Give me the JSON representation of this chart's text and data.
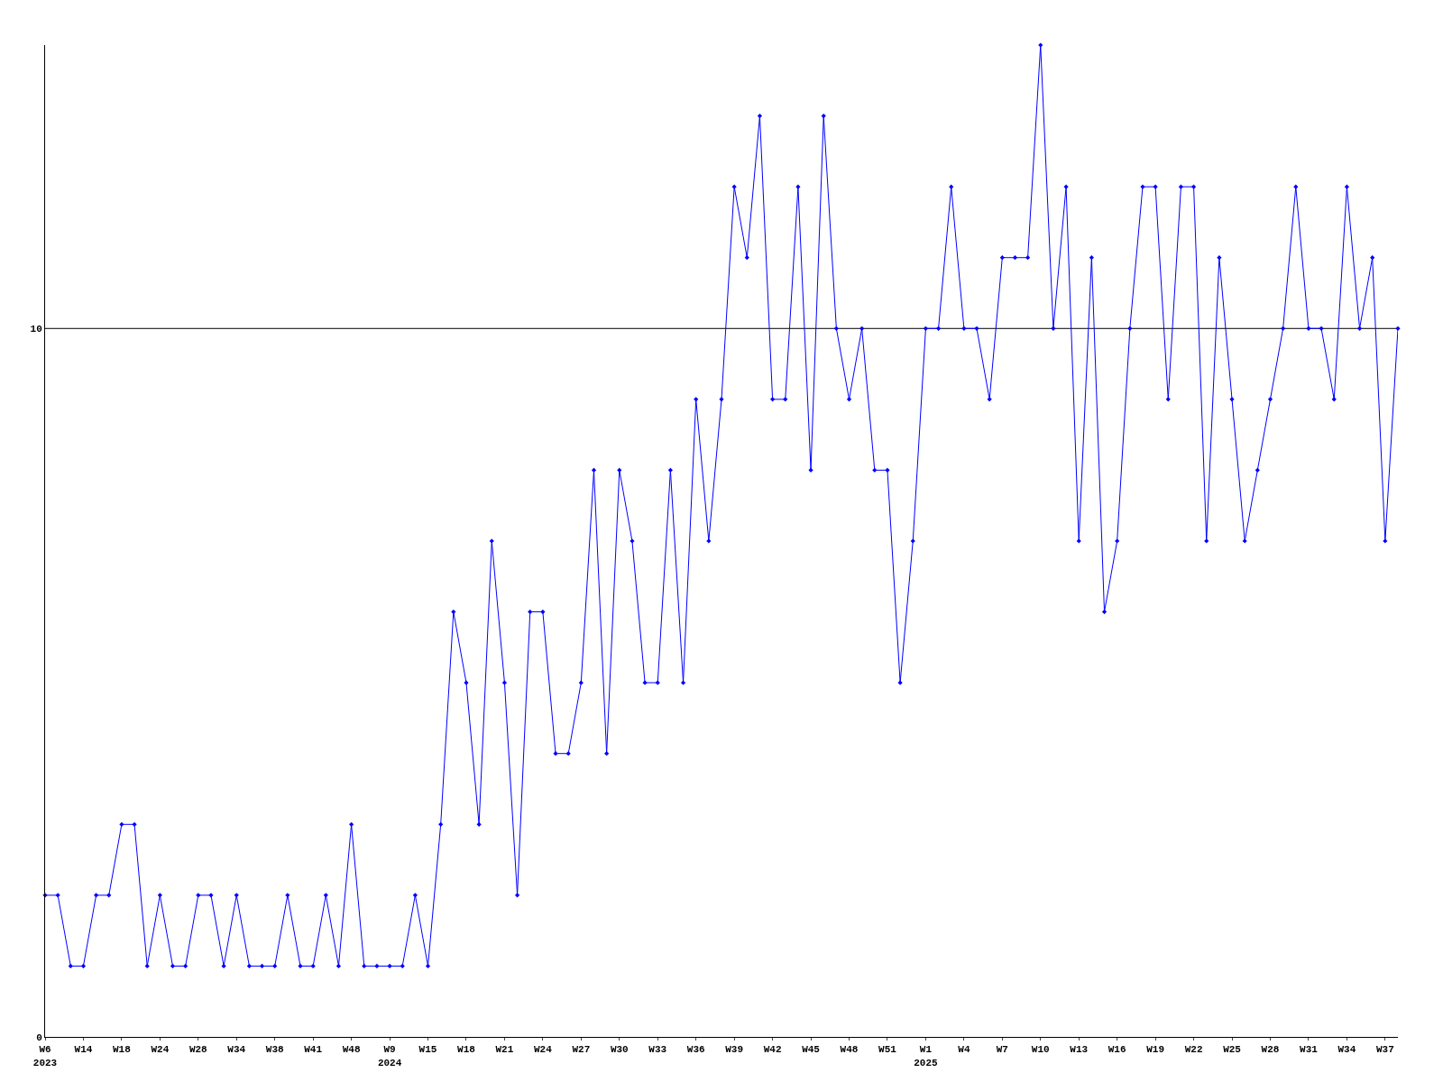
{
  "chart_data": {
    "type": "line",
    "categories": [
      "W6\n2023",
      null,
      null,
      "W14",
      null,
      null,
      "W18",
      null,
      null,
      "W24",
      null,
      null,
      "W28",
      null,
      null,
      "W34",
      null,
      null,
      "W38",
      null,
      null,
      "W41",
      null,
      null,
      "W48",
      null,
      null,
      "W9\n2024",
      null,
      null,
      "W15",
      null,
      null,
      "W18",
      null,
      null,
      "W21",
      null,
      null,
      "W24",
      null,
      null,
      "W27",
      null,
      null,
      "W30",
      null,
      null,
      "W33",
      null,
      null,
      "W36",
      null,
      null,
      "W39",
      null,
      null,
      "W42",
      null,
      null,
      "W45",
      null,
      null,
      "W48",
      null,
      null,
      "W51",
      null,
      null,
      "W1\n2025",
      null,
      null,
      "W4",
      null,
      null,
      "W7",
      null,
      null,
      "W10",
      null,
      null,
      "W13",
      null,
      null,
      "W16",
      null,
      null,
      "W19",
      null,
      null,
      "W22",
      null,
      null,
      "W25",
      null,
      null,
      "W28",
      null,
      null,
      "W31",
      null,
      null,
      "W34",
      null,
      null,
      "W37",
      null
    ],
    "series": [
      {
        "color": "#0000ff",
        "values": [
          2,
          2,
          1,
          1,
          2,
          2,
          3,
          3,
          1,
          2,
          1,
          1,
          2,
          2,
          1,
          2,
          1,
          1,
          1,
          2,
          1,
          1,
          2,
          1,
          3,
          1,
          1,
          1,
          1,
          2,
          1,
          3,
          6,
          5,
          3,
          7,
          5,
          2,
          6,
          6,
          4,
          4,
          5,
          8,
          4,
          8,
          7,
          5,
          5,
          8,
          5,
          9,
          7,
          9,
          12,
          11,
          13,
          9,
          9,
          12,
          8,
          13,
          10,
          9,
          10,
          8,
          8,
          5,
          7,
          10,
          10,
          12,
          10,
          10,
          9,
          11,
          11,
          11,
          14,
          10,
          12,
          7,
          11,
          6,
          7,
          10,
          12,
          12,
          9,
          12,
          12,
          7,
          11,
          9,
          7,
          8,
          9,
          10,
          12,
          10,
          10,
          9,
          12,
          10,
          11,
          7,
          10
        ]
      }
    ],
    "ylim": [
      0,
      14
    ],
    "yticks": [
      0,
      10
    ],
    "grid": false,
    "marker": "diamond",
    "line_style": "solid",
    "ref_lines": [
      {
        "axis": "y",
        "value": 10,
        "color": "#000000"
      }
    ]
  }
}
